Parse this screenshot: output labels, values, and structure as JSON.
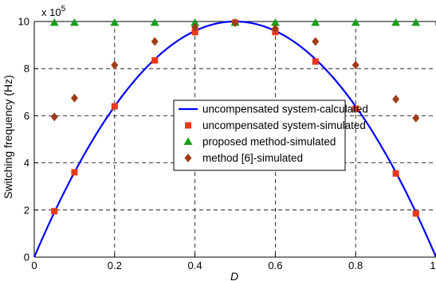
{
  "chart_data": {
    "type": "scatter",
    "xlabel": "D",
    "ylabel": "Switching frequency (Hz)",
    "y_multiplier_label": "x 10",
    "y_multiplier_exponent": "5",
    "xlim": [
      0,
      1
    ],
    "ylim": [
      0,
      10
    ],
    "x_ticks": [
      "0",
      "0.2",
      "0.4",
      "0.6",
      "0.8",
      "1"
    ],
    "y_ticks": [
      "0",
      "2",
      "4",
      "6",
      "8",
      "10"
    ],
    "grid": true,
    "legend_position": "center",
    "series": [
      {
        "name": "uncompensated system-calculated",
        "kind": "line",
        "color": "#0000ff",
        "formula_note": "parabola",
        "x": [
          0,
          0.05,
          0.1,
          0.15,
          0.2,
          0.25,
          0.3,
          0.35,
          0.4,
          0.45,
          0.5,
          0.55,
          0.6,
          0.65,
          0.7,
          0.75,
          0.8,
          0.85,
          0.9,
          0.95,
          1
        ],
        "y": [
          0,
          1.9,
          3.6,
          5.1,
          6.4,
          7.5,
          8.4,
          9.1,
          9.6,
          9.9,
          10,
          9.9,
          9.6,
          9.1,
          8.4,
          7.5,
          6.4,
          5.1,
          3.6,
          1.9,
          0
        ]
      },
      {
        "name": "uncompensated system-simulated",
        "kind": "square",
        "color": "#e8381a",
        "x": [
          0.05,
          0.1,
          0.2,
          0.3,
          0.4,
          0.5,
          0.6,
          0.7,
          0.8,
          0.9,
          0.95
        ],
        "y": [
          1.95,
          3.6,
          6.4,
          8.35,
          9.55,
          9.95,
          9.55,
          8.3,
          6.3,
          3.55,
          1.85
        ]
      },
      {
        "name": "proposed method-simulated",
        "kind": "triangle",
        "color": "#1a9e1a",
        "x": [
          0.05,
          0.1,
          0.2,
          0.3,
          0.4,
          0.5,
          0.6,
          0.7,
          0.8,
          0.9,
          0.95
        ],
        "y": [
          9.95,
          9.95,
          9.95,
          9.95,
          9.95,
          9.95,
          9.95,
          9.95,
          9.95,
          9.95,
          9.95
        ]
      },
      {
        "name": "method [6]-simulated",
        "kind": "diamond",
        "color": "#9e3d16",
        "x": [
          0.05,
          0.1,
          0.2,
          0.3,
          0.4,
          0.5,
          0.6,
          0.7,
          0.8,
          0.9,
          0.95
        ],
        "y": [
          5.95,
          6.75,
          8.15,
          9.15,
          9.75,
          9.95,
          9.7,
          9.15,
          8.15,
          6.7,
          5.9
        ]
      }
    ]
  }
}
